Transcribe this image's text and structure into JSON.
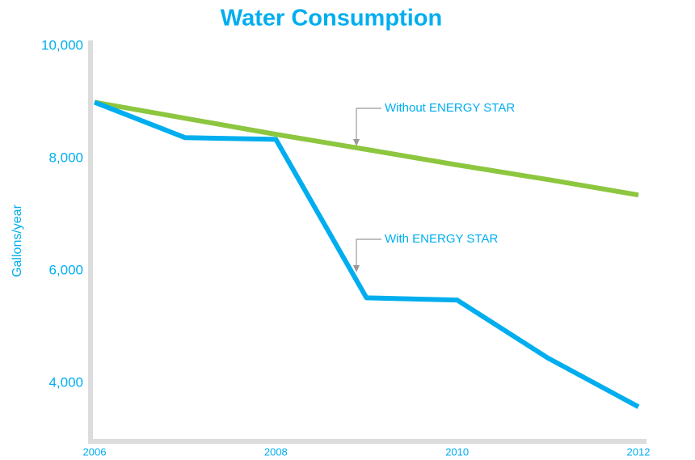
{
  "chart_data": {
    "type": "line",
    "title": "Water Consumption",
    "ylabel": "Gallons/year",
    "x": [
      2006,
      2007,
      2008,
      2009,
      2010,
      2011,
      2012
    ],
    "series": [
      {
        "name": "Without ENERGY STAR",
        "color": "#8dc63f",
        "values": [
          9000,
          8715,
          8430,
          8160,
          7885,
          7625,
          7350
        ]
      },
      {
        "name": "With ENERGY STAR",
        "color": "#00aeef",
        "values": [
          9000,
          8370,
          8340,
          5520,
          5480,
          4450,
          3580
        ]
      }
    ],
    "xlim": [
      2006,
      2012
    ],
    "xticks": [
      2006,
      2008,
      2010,
      2012
    ],
    "ylim": [
      3000,
      10000
    ],
    "yticks": [
      {
        "value": 4000,
        "label": "4,000"
      },
      {
        "value": 6000,
        "label": "6,000"
      },
      {
        "value": 8000,
        "label": "8,000"
      },
      {
        "value": 10000,
        "label": "10,000"
      }
    ],
    "grid": false
  }
}
